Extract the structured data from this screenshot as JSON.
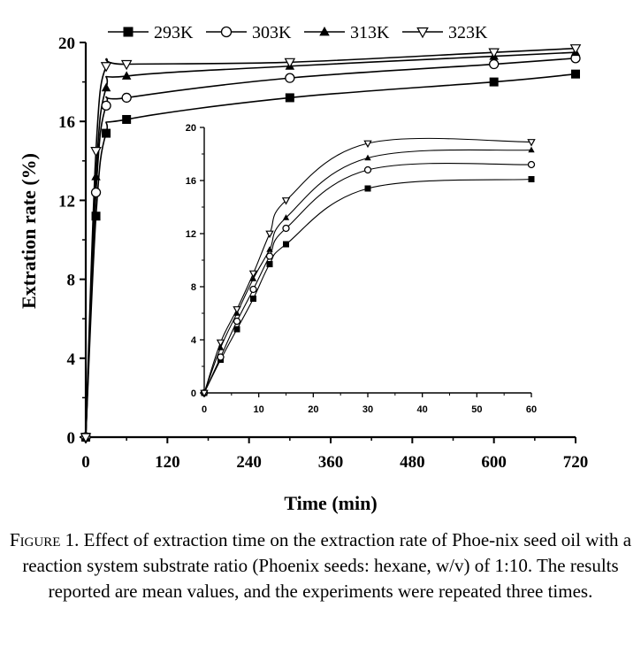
{
  "chart_data": [
    {
      "type": "line",
      "ylabel": "Extration rate (%)",
      "xlabel": "Time (min)",
      "xlim": [
        0,
        720
      ],
      "ylim": [
        0,
        20
      ],
      "xticks": [
        "0",
        "120",
        "240",
        "360",
        "480",
        "600",
        "720"
      ],
      "yticks": [
        "0",
        "4",
        "8",
        "12",
        "16",
        "20"
      ],
      "legend_position": "top",
      "grid": false,
      "series": [
        {
          "name": "293K",
          "marker": "square-filled",
          "x": [
            0,
            15,
            30,
            60,
            300,
            600,
            720
          ],
          "y": [
            0,
            11.2,
            15.4,
            16.1,
            17.2,
            18.0,
            18.4
          ]
        },
        {
          "name": "303K",
          "marker": "circle-open",
          "x": [
            0,
            15,
            30,
            60,
            300,
            600,
            720
          ],
          "y": [
            0,
            12.4,
            16.8,
            17.2,
            18.2,
            18.9,
            19.2
          ]
        },
        {
          "name": "313K",
          "marker": "triangle-up-filled",
          "x": [
            0,
            15,
            30,
            60,
            300,
            600,
            720
          ],
          "y": [
            0,
            13.2,
            17.7,
            18.3,
            18.8,
            19.3,
            19.5
          ]
        },
        {
          "name": "323K",
          "marker": "triangle-down-open",
          "x": [
            0,
            15,
            30,
            60,
            300,
            600,
            720
          ],
          "y": [
            0,
            14.5,
            18.8,
            18.9,
            19.0,
            19.5,
            19.7
          ]
        }
      ]
    },
    {
      "type": "line",
      "inset": true,
      "xlim": [
        0,
        60
      ],
      "ylim": [
        0,
        20
      ],
      "xticks": [
        "0",
        "10",
        "20",
        "30",
        "40",
        "50",
        "60"
      ],
      "yticks": [
        "0",
        "4",
        "8",
        "12",
        "16",
        "20"
      ],
      "series": [
        {
          "marker": "square-filled",
          "x": [
            0,
            3,
            6,
            9,
            12,
            15,
            30,
            60
          ],
          "y": [
            0,
            2.5,
            4.8,
            7.1,
            9.7,
            11.2,
            15.4,
            16.1
          ]
        },
        {
          "marker": "circle-open",
          "x": [
            0,
            3,
            6,
            9,
            12,
            15,
            30,
            60
          ],
          "y": [
            0,
            2.7,
            5.4,
            7.8,
            10.3,
            12.4,
            16.8,
            17.2
          ]
        },
        {
          "marker": "triangle-up-filled",
          "x": [
            0,
            3,
            6,
            9,
            12,
            15,
            30,
            60
          ],
          "y": [
            0,
            3.4,
            6.0,
            8.6,
            10.8,
            13.2,
            17.7,
            18.3
          ]
        },
        {
          "marker": "triangle-down-open",
          "x": [
            0,
            3,
            6,
            9,
            12,
            15,
            30,
            60
          ],
          "y": [
            0,
            3.8,
            6.3,
            9.0,
            12.0,
            14.5,
            18.8,
            18.9
          ]
        }
      ]
    }
  ],
  "caption": {
    "label_first": "F",
    "label_rest": "igure 1.",
    "text": "Effect of extraction time on the extraction rate of Phoe-nix seed oil with a reaction system substrate ratio (Phoenix seeds: hexane, w/v) of 1:10. The results reported are mean values, and the experiments were repeated three times."
  }
}
